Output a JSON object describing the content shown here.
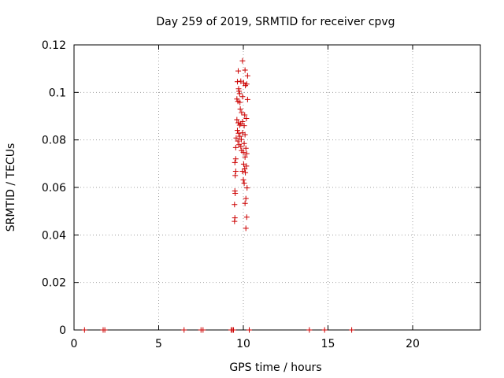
{
  "chart_data": {
    "type": "scatter",
    "title": "Day 259 of 2019, SRMTID for receiver cpvg",
    "xlabel": "GPS time / hours",
    "ylabel": "SRMTID / TECUs",
    "xlim": [
      0,
      24
    ],
    "ylim": [
      0,
      0.12
    ],
    "grid": true,
    "xticks": [
      0,
      5,
      10,
      15,
      20
    ],
    "xtick_labels": [
      "0",
      "5",
      "10",
      "15",
      "20"
    ],
    "yticks": [
      0,
      0.02,
      0.04,
      0.06,
      0.08,
      0.1,
      0.12
    ],
    "ytick_labels": [
      "0",
      "0.02",
      "0.04",
      "0.06",
      "0.08",
      "0.1",
      "0.12"
    ],
    "marker": "+",
    "series": [
      {
        "name": "SRMTID",
        "color": "#cc0000",
        "points": [
          [
            0.62,
            0
          ],
          [
            1.72,
            0
          ],
          [
            1.82,
            0
          ],
          [
            6.5,
            0
          ],
          [
            7.5,
            0
          ],
          [
            7.62,
            0
          ],
          [
            9.28,
            0
          ],
          [
            9.35,
            0
          ],
          [
            9.42,
            0
          ],
          [
            10.35,
            0
          ],
          [
            13.9,
            0
          ],
          [
            14.8,
            0
          ],
          [
            16.4,
            0
          ],
          [
            9.95,
            0.1133
          ],
          [
            10.1,
            0.1094
          ],
          [
            10.25,
            0.107
          ],
          [
            9.85,
            0.1047
          ],
          [
            10.02,
            0.104
          ],
          [
            10.2,
            0.1035
          ],
          [
            10.12,
            0.1029
          ],
          [
            9.65,
            0.1045
          ],
          [
            9.7,
            0.109
          ],
          [
            9.72,
            0.1015
          ],
          [
            9.75,
            0.1005
          ],
          [
            9.78,
            0.0995
          ],
          [
            9.62,
            0.0972
          ],
          [
            9.68,
            0.0962
          ],
          [
            9.8,
            0.0958
          ],
          [
            9.95,
            0.0982
          ],
          [
            10.25,
            0.097
          ],
          [
            9.82,
            0.093
          ],
          [
            9.9,
            0.0915
          ],
          [
            10.08,
            0.0905
          ],
          [
            10.18,
            0.089
          ],
          [
            9.62,
            0.0885
          ],
          [
            9.7,
            0.0872
          ],
          [
            9.78,
            0.0862
          ],
          [
            9.85,
            0.0868
          ],
          [
            9.95,
            0.0877
          ],
          [
            10.05,
            0.086
          ],
          [
            9.65,
            0.084
          ],
          [
            9.72,
            0.0828
          ],
          [
            9.8,
            0.0815
          ],
          [
            9.88,
            0.0802
          ],
          [
            9.95,
            0.083
          ],
          [
            10.1,
            0.0822
          ],
          [
            9.58,
            0.0808
          ],
          [
            9.68,
            0.0795
          ],
          [
            9.75,
            0.078
          ],
          [
            9.85,
            0.0772
          ],
          [
            9.55,
            0.0768
          ],
          [
            10.05,
            0.0785
          ],
          [
            10.15,
            0.0765
          ],
          [
            9.9,
            0.0755
          ],
          [
            10.0,
            0.0748
          ],
          [
            10.2,
            0.0742
          ],
          [
            10.1,
            0.0728
          ],
          [
            9.55,
            0.072
          ],
          [
            9.5,
            0.0705
          ],
          [
            10.02,
            0.0698
          ],
          [
            10.18,
            0.069
          ],
          [
            10.08,
            0.0678
          ],
          [
            9.95,
            0.0668
          ],
          [
            10.12,
            0.0662
          ],
          [
            9.55,
            0.0668
          ],
          [
            9.52,
            0.065
          ],
          [
            10.0,
            0.0632
          ],
          [
            10.05,
            0.0618
          ],
          [
            10.22,
            0.0598
          ],
          [
            9.5,
            0.0585
          ],
          [
            9.52,
            0.0575
          ],
          [
            10.15,
            0.0553
          ],
          [
            10.1,
            0.0533
          ],
          [
            9.48,
            0.0528
          ],
          [
            10.2,
            0.0475
          ],
          [
            9.5,
            0.0472
          ],
          [
            9.48,
            0.0457
          ],
          [
            10.15,
            0.0428
          ]
        ]
      }
    ]
  }
}
